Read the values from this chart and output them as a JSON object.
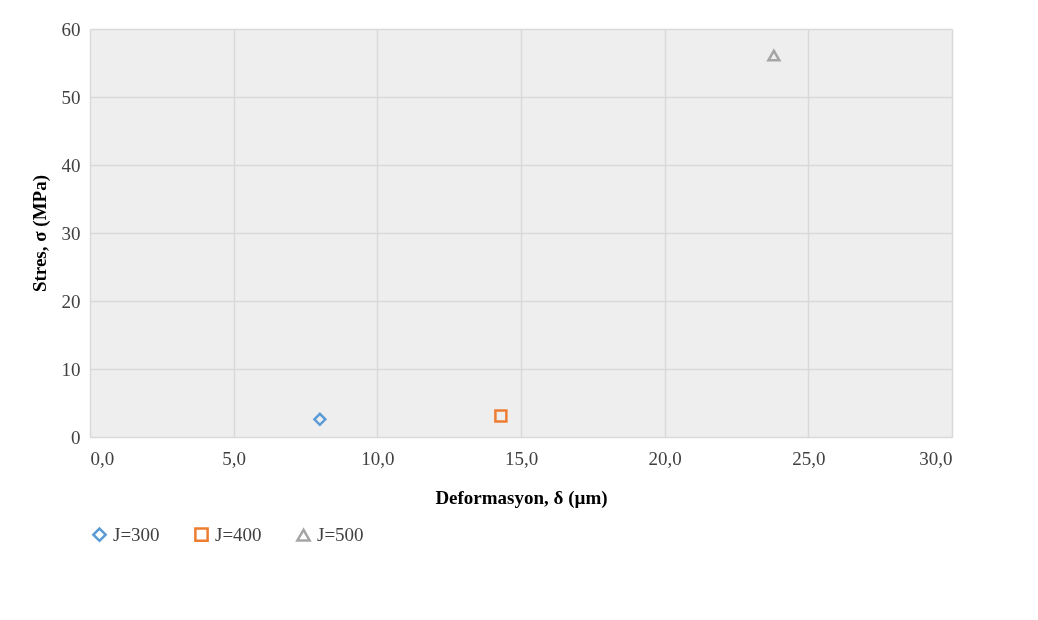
{
  "chart_data": {
    "type": "scatter",
    "xlabel": "Deformasyon, δ (µm)",
    "ylabel": "Stres, σ (MPa)",
    "xlim": [
      0,
      30
    ],
    "xticks": [
      {
        "value": 0,
        "label": "0,0"
      },
      {
        "value": 5,
        "label": "5,0"
      },
      {
        "value": 10,
        "label": "10,0"
      },
      {
        "value": 15,
        "label": "15,0"
      },
      {
        "value": 20,
        "label": "20,0"
      },
      {
        "value": 25,
        "label": "25,0"
      },
      {
        "value": 30,
        "label": "30,0"
      }
    ],
    "ylim": [
      0,
      60
    ],
    "yticks": [
      0,
      10,
      20,
      30,
      40,
      50,
      60
    ],
    "grid": true,
    "legend": "bottom",
    "series": [
      {
        "name": "J=300",
        "color": "#5b9bd5",
        "marker": "diamond",
        "x": [
          8.0
        ],
        "values": [
          2.6
        ]
      },
      {
        "name": "J=400",
        "color": "#ed7d31",
        "marker": "square",
        "x": [
          14.3
        ],
        "values": [
          3.1
        ]
      },
      {
        "name": "J=500",
        "color": "#a5a5a5",
        "marker": "triangle",
        "x": [
          23.8
        ],
        "values": [
          56.1
        ]
      }
    ]
  }
}
